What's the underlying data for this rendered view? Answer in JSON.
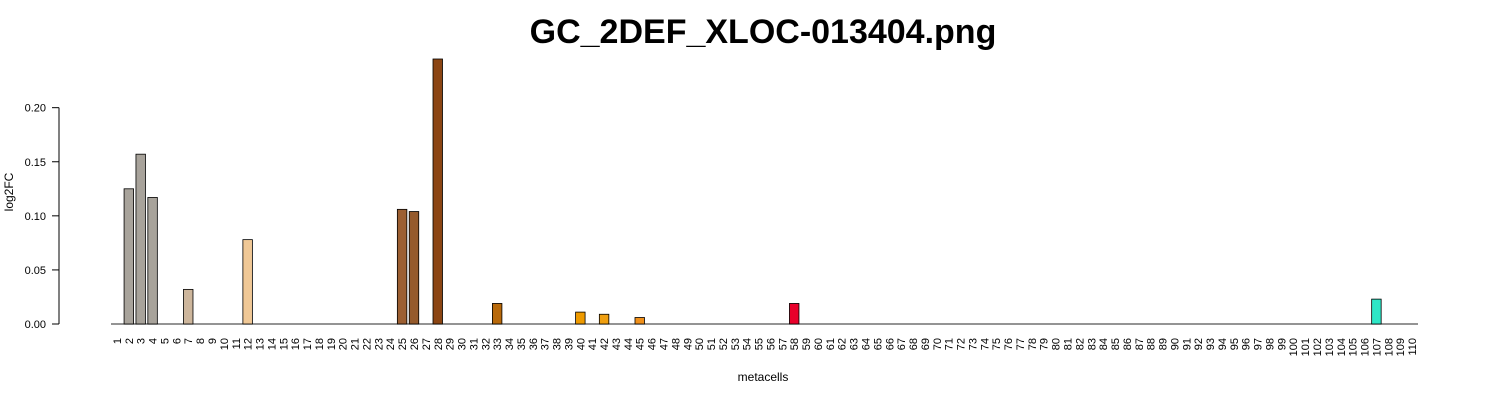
{
  "chart_data": {
    "type": "bar",
    "title": "GC_2DEF_XLOC-013404.png",
    "xlabel": "metacells",
    "ylabel": "log2FC",
    "ylim": [
      0,
      0.245
    ],
    "yticks": [
      "0.00",
      "0.05",
      "0.10",
      "0.15",
      "0.20"
    ],
    "grid": false,
    "categories": [
      "1",
      "2",
      "3",
      "4",
      "5",
      "6",
      "7",
      "8",
      "9",
      "10",
      "11",
      "12",
      "13",
      "14",
      "15",
      "16",
      "17",
      "18",
      "19",
      "20",
      "21",
      "22",
      "23",
      "24",
      "25",
      "26",
      "27",
      "28",
      "29",
      "30",
      "31",
      "32",
      "33",
      "34",
      "35",
      "36",
      "37",
      "38",
      "39",
      "40",
      "41",
      "42",
      "43",
      "44",
      "45",
      "46",
      "47",
      "48",
      "49",
      "50",
      "51",
      "52",
      "53",
      "54",
      "55",
      "56",
      "57",
      "58",
      "59",
      "60",
      "61",
      "62",
      "63",
      "64",
      "65",
      "66",
      "67",
      "68",
      "69",
      "70",
      "71",
      "72",
      "73",
      "74",
      "75",
      "76",
      "77",
      "78",
      "79",
      "80",
      "81",
      "82",
      "83",
      "84",
      "85",
      "86",
      "87",
      "88",
      "89",
      "90",
      "91",
      "92",
      "93",
      "94",
      "95",
      "96",
      "97",
      "98",
      "99",
      "100",
      "101",
      "102",
      "103",
      "104",
      "105",
      "106",
      "107",
      "108",
      "109",
      "110"
    ],
    "values": [
      0,
      0.125,
      0.157,
      0.117,
      0,
      0,
      0.032,
      0,
      0,
      0,
      0,
      0.078,
      0,
      0,
      0,
      0,
      0,
      0,
      0,
      0,
      0,
      0,
      0,
      0,
      0.106,
      0.104,
      0,
      0.245,
      0,
      0,
      0,
      0,
      0.019,
      0,
      0,
      0,
      0,
      0,
      0,
      0.011,
      0,
      0.009,
      0,
      0,
      0.006,
      0,
      0,
      0,
      0,
      0,
      0,
      0,
      0,
      0,
      0,
      0,
      0,
      0.019,
      0,
      0,
      0,
      0,
      0,
      0,
      0,
      0,
      0,
      0,
      0,
      0,
      0,
      0,
      0,
      0,
      0,
      0,
      0,
      0,
      0,
      0,
      0,
      0,
      0,
      0,
      0,
      0,
      0,
      0,
      0,
      0,
      0,
      0,
      0,
      0,
      0,
      0,
      0,
      0,
      0,
      0,
      0,
      0,
      0,
      0,
      0,
      0,
      0.023,
      0,
      0,
      0
    ],
    "colors": {
      "2": "#a8a39b",
      "3": "#a8a39b",
      "4": "#a8a39b",
      "7": "#cdb69c",
      "12": "#f0c896",
      "25": "#9c5f32",
      "26": "#955a2c",
      "28": "#8b4513",
      "33": "#b8690a",
      "40": "#ee9a00",
      "42": "#ef9f10",
      "45": "#f0901a",
      "58": "#e8002a",
      "107": "#2ee6c6"
    },
    "default_color": "#cccccc"
  }
}
